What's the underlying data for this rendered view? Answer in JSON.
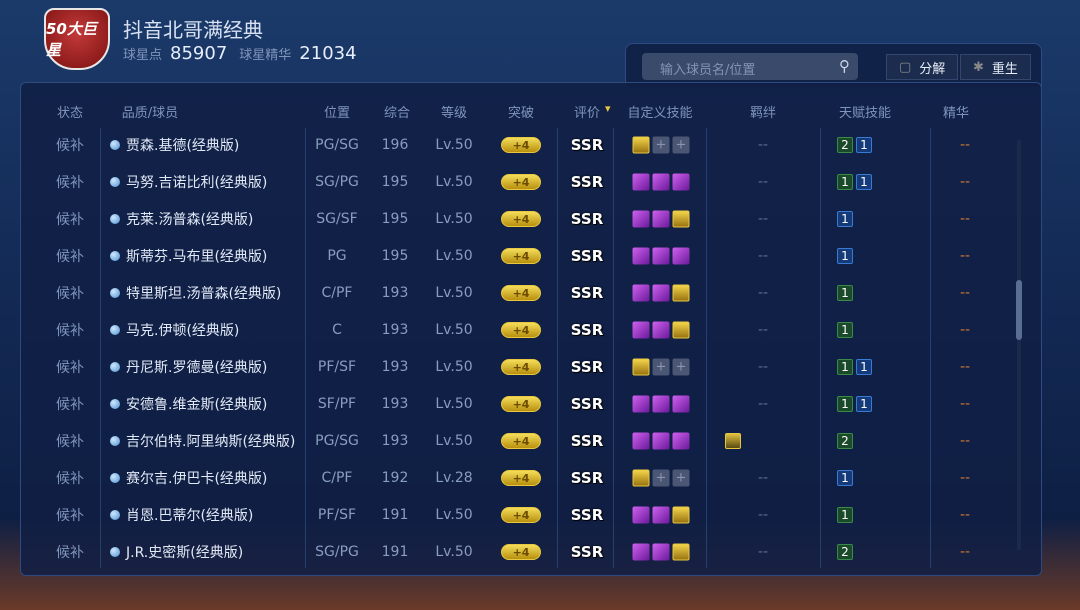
{
  "header": {
    "logo_text": "50大巨星",
    "title": "抖音北哥满经典",
    "points_label": "球星点",
    "points": "85907",
    "essence_label": "球星精华",
    "essence": "21034"
  },
  "toolbar": {
    "search_placeholder": "输入球员名/位置",
    "search_icon": "search-icon",
    "decompose_label": "分解",
    "rebirth_label": "重生"
  },
  "columns": [
    "状态",
    "品质/球员",
    "位置",
    "综合",
    "等级",
    "突破",
    "评价",
    "自定义技能",
    "羁绊",
    "天赋技能",
    "精华"
  ],
  "colors": {
    "breakthrough": "#e8c840",
    "talent_green": "#3a8a4a",
    "talent_blue": "#3a7ad0",
    "essence_dash": "#d07a30"
  },
  "rows": [
    {
      "status": "候补",
      "name": "贾森.基德(经典版)",
      "pos": "PG/SG",
      "ovr": "196",
      "lv": "Lv.50",
      "bt": "+4",
      "grade": "SSR",
      "skills": [
        "c",
        "e",
        "e"
      ],
      "bond": "--",
      "talents": [
        [
          "2",
          "g"
        ],
        [
          "1",
          "b"
        ]
      ],
      "essence": "--"
    },
    {
      "status": "候补",
      "name": "马努.吉诺比利(经典版)",
      "pos": "SG/PG",
      "ovr": "195",
      "lv": "Lv.50",
      "bt": "+4",
      "grade": "SSR",
      "skills": [
        "p",
        "p",
        "p"
      ],
      "bond": "--",
      "talents": [
        [
          "1",
          "g"
        ],
        [
          "1",
          "b"
        ]
      ],
      "essence": "--"
    },
    {
      "status": "候补",
      "name": "克莱.汤普森(经典版)",
      "pos": "SG/SF",
      "ovr": "195",
      "lv": "Lv.50",
      "bt": "+4",
      "grade": "SSR",
      "skills": [
        "p",
        "p",
        "c"
      ],
      "bond": "--",
      "talents": [
        [
          "1",
          "b"
        ]
      ],
      "essence": "--"
    },
    {
      "status": "候补",
      "name": "斯蒂芬.马布里(经典版)",
      "pos": "PG",
      "ovr": "195",
      "lv": "Lv.50",
      "bt": "+4",
      "grade": "SSR",
      "skills": [
        "p",
        "p",
        "p"
      ],
      "bond": "--",
      "talents": [
        [
          "1",
          "b"
        ]
      ],
      "essence": "--"
    },
    {
      "status": "候补",
      "name": "特里斯坦.汤普森(经典版)",
      "pos": "C/PF",
      "ovr": "193",
      "lv": "Lv.50",
      "bt": "+4",
      "grade": "SSR",
      "skills": [
        "p",
        "p",
        "c"
      ],
      "bond": "--",
      "talents": [
        [
          "1",
          "g"
        ]
      ],
      "essence": "--"
    },
    {
      "status": "候补",
      "name": "马克.伊顿(经典版)",
      "pos": "C",
      "ovr": "193",
      "lv": "Lv.50",
      "bt": "+4",
      "grade": "SSR",
      "skills": [
        "p",
        "p",
        "c"
      ],
      "bond": "--",
      "talents": [
        [
          "1",
          "g"
        ]
      ],
      "essence": "--"
    },
    {
      "status": "候补",
      "name": "丹尼斯.罗德曼(经典版)",
      "pos": "PF/SF",
      "ovr": "193",
      "lv": "Lv.50",
      "bt": "+4",
      "grade": "SSR",
      "skills": [
        "c",
        "e",
        "e"
      ],
      "bond": "--",
      "talents": [
        [
          "1",
          "g"
        ],
        [
          "1",
          "b"
        ]
      ],
      "essence": "--"
    },
    {
      "status": "候补",
      "name": "安德鲁.维金斯(经典版)",
      "pos": "SF/PF",
      "ovr": "193",
      "lv": "Lv.50",
      "bt": "+4",
      "grade": "SSR",
      "skills": [
        "p",
        "p",
        "p"
      ],
      "bond": "--",
      "talents": [
        [
          "1",
          "g"
        ],
        [
          "1",
          "b"
        ]
      ],
      "essence": "--"
    },
    {
      "status": "候补",
      "name": "吉尔伯特.阿里纳斯(经典版)",
      "pos": "PG/SG",
      "ovr": "193",
      "lv": "Lv.50",
      "bt": "+4",
      "grade": "SSR",
      "skills": [
        "p",
        "p",
        "p"
      ],
      "bond": "icon",
      "talents": [
        [
          "2",
          "g"
        ]
      ],
      "essence": "--"
    },
    {
      "status": "候补",
      "name": "赛尔吉.伊巴卡(经典版)",
      "pos": "C/PF",
      "ovr": "192",
      "lv": "Lv.28",
      "bt": "+4",
      "grade": "SSR",
      "skills": [
        "c",
        "e",
        "e"
      ],
      "bond": "--",
      "talents": [
        [
          "1",
          "b"
        ]
      ],
      "essence": "--"
    },
    {
      "status": "候补",
      "name": "肖恩.巴蒂尔(经典版)",
      "pos": "PF/SF",
      "ovr": "191",
      "lv": "Lv.50",
      "bt": "+4",
      "grade": "SSR",
      "skills": [
        "p",
        "p",
        "c"
      ],
      "bond": "--",
      "talents": [
        [
          "1",
          "g"
        ]
      ],
      "essence": "--"
    },
    {
      "status": "候补",
      "name": "J.R.史密斯(经典版)",
      "pos": "SG/PG",
      "ovr": "191",
      "lv": "Lv.50",
      "bt": "+4",
      "grade": "SSR",
      "skills": [
        "p",
        "p",
        "c"
      ],
      "bond": "--",
      "talents": [
        [
          "2",
          "g"
        ]
      ],
      "essence": "--"
    }
  ]
}
